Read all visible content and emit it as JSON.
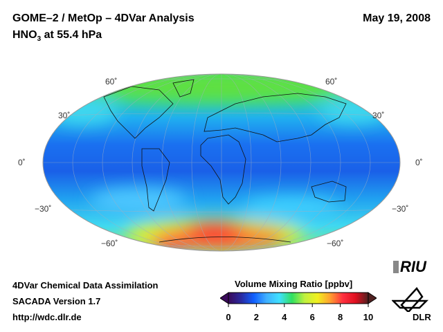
{
  "header": {
    "title": "GOME–2 / MetOp – 4DVar Analysis",
    "date": "May 19, 2008",
    "species_prefix": "HNO",
    "species_sub": "3",
    "species_suffix": " at 55.4 hPa"
  },
  "map": {
    "projection": "Hammer/Mollweide global",
    "lat_labels": [
      "60˚",
      "30˚",
      "0˚",
      "−30˚",
      "−60˚"
    ]
  },
  "footer": {
    "line1": "4DVar Chemical Data Assimilation",
    "line2": "SACADA Version 1.7",
    "line3": "http://wdc.dlr.de"
  },
  "colorbar": {
    "title": "Volume Mixing Ratio [ppbv]",
    "min": 0,
    "max": 10,
    "ticks": [
      "0",
      "2",
      "4",
      "6",
      "8",
      "10"
    ],
    "colors": [
      "#3a0a5a",
      "#2a2aa0",
      "#1060ff",
      "#40b0ff",
      "#40e0ff",
      "#30e060",
      "#c0f040",
      "#f0f020",
      "#ffa030",
      "#ff3040",
      "#e01020",
      "#502020"
    ]
  },
  "logos": {
    "riu": "RIU",
    "dlr": "DLR"
  }
}
